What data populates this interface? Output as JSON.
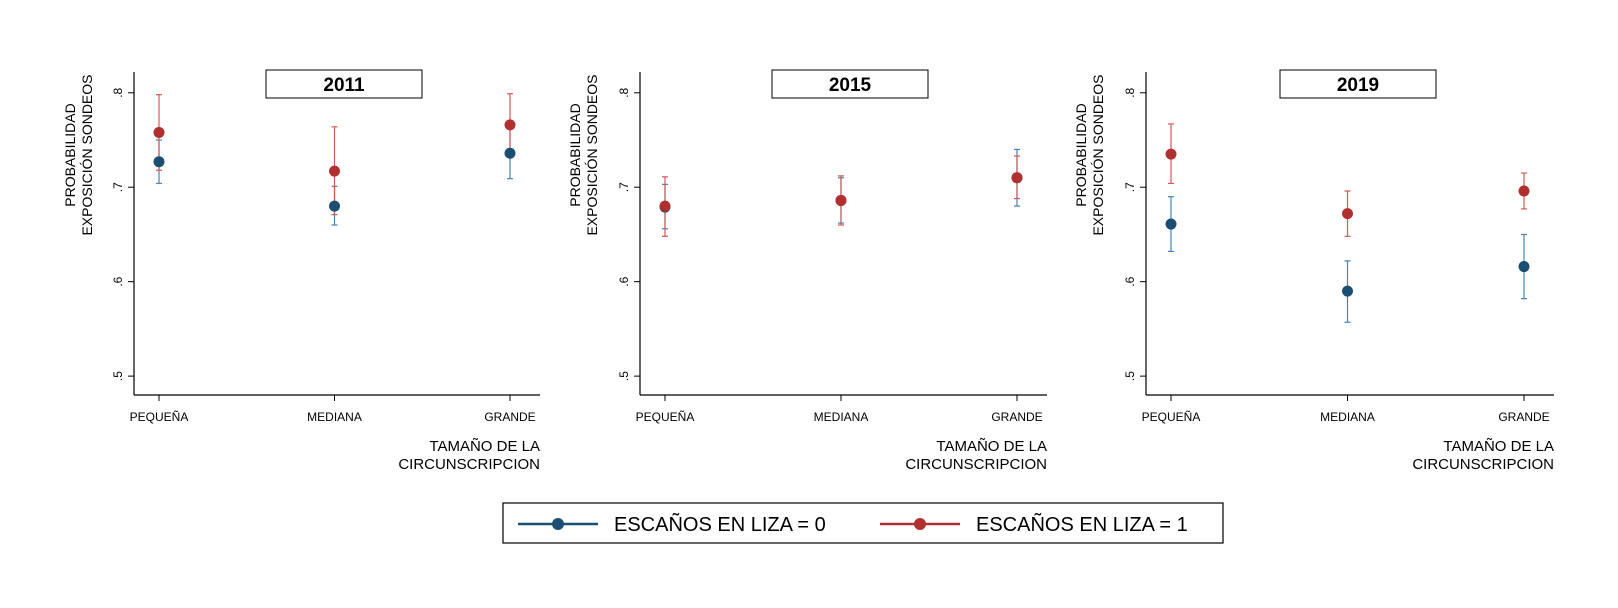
{
  "chart_data": [
    {
      "type": "scatter",
      "title": "2011",
      "ylabel_lines": [
        "PROBABILIDAD",
        "EXPOSICIÓN SONDEOS"
      ],
      "xlabel_lines": [
        "TAMAÑO DE LA",
        "CIRCUNSCRIPCION"
      ],
      "categories": [
        "PEQUEÑA",
        "MEDIANA",
        "GRANDE"
      ],
      "y_ticks": [
        {
          "value": 0.5,
          "label": ".5"
        },
        {
          "value": 0.6,
          "label": ".6"
        },
        {
          "value": 0.7,
          "label": ".7"
        },
        {
          "value": 0.8,
          "label": ".8"
        }
      ],
      "ylim": [
        0.48,
        0.822
      ],
      "series": [
        {
          "name": "ESCAÑOS EN LIZA = 0",
          "color": "#1b4f72",
          "values": [
            0.727,
            0.68,
            0.736
          ],
          "ci_low": [
            0.704,
            0.66,
            0.709
          ],
          "ci_high": [
            0.75,
            0.701,
            0.763
          ]
        },
        {
          "name": "ESCAÑOS EN LIZA = 1",
          "color": "#b03030",
          "values": [
            0.758,
            0.717,
            0.766
          ],
          "ci_low": [
            0.718,
            0.671,
            0.733
          ],
          "ci_high": [
            0.798,
            0.764,
            0.799
          ]
        }
      ]
    },
    {
      "type": "scatter",
      "title": "2015",
      "ylabel_lines": [
        "PROBABILIDAD",
        "EXPOSICIÓN SONDEOS"
      ],
      "xlabel_lines": [
        "TAMAÑO DE LA",
        "CIRCUNSCRIPCION"
      ],
      "categories": [
        "PEQUEÑA",
        "MEDIANA",
        "GRANDE"
      ],
      "y_ticks": [
        {
          "value": 0.5,
          "label": ".5"
        },
        {
          "value": 0.6,
          "label": ".6"
        },
        {
          "value": 0.7,
          "label": ".7"
        },
        {
          "value": 0.8,
          "label": ".8"
        }
      ],
      "ylim": [
        0.48,
        0.822
      ],
      "series": [
        {
          "name": "ESCAÑOS EN LIZA = 0",
          "color": "#1b4f72",
          "values": [
            0.679,
            0.686,
            0.71
          ],
          "ci_low": [
            0.656,
            0.662,
            0.68
          ],
          "ci_high": [
            0.703,
            0.71,
            0.74
          ]
        },
        {
          "name": "ESCAÑOS EN LIZA = 1",
          "color": "#b03030",
          "values": [
            0.68,
            0.686,
            0.71
          ],
          "ci_low": [
            0.648,
            0.66,
            0.688
          ],
          "ci_high": [
            0.711,
            0.712,
            0.733
          ]
        }
      ]
    },
    {
      "type": "scatter",
      "title": "2019",
      "ylabel_lines": [
        "PROBABILIDAD",
        "EXPOSICIÓN SONDEOS"
      ],
      "xlabel_lines": [
        "TAMAÑO DE LA",
        "CIRCUNSCRIPCION"
      ],
      "categories": [
        "PEQUEÑA",
        "MEDIANA",
        "GRANDE"
      ],
      "y_ticks": [
        {
          "value": 0.5,
          "label": ".5"
        },
        {
          "value": 0.6,
          "label": ".6"
        },
        {
          "value": 0.7,
          "label": ".7"
        },
        {
          "value": 0.8,
          "label": ".8"
        }
      ],
      "ylim": [
        0.48,
        0.822
      ],
      "series": [
        {
          "name": "ESCAÑOS EN LIZA = 0",
          "color": "#1b4f72",
          "values": [
            0.661,
            0.59,
            0.616
          ],
          "ci_low": [
            0.632,
            0.557,
            0.582
          ],
          "ci_high": [
            0.69,
            0.622,
            0.65
          ]
        },
        {
          "name": "ESCAÑOS EN LIZA = 1",
          "color": "#b03030",
          "values": [
            0.735,
            0.672,
            0.696
          ],
          "ci_low": [
            0.704,
            0.648,
            0.677
          ],
          "ci_high": [
            0.767,
            0.696,
            0.715
          ]
        }
      ]
    }
  ],
  "legend": [
    {
      "label": "ESCAÑOS EN LIZA = 0",
      "color": "#1b4f72"
    },
    {
      "label": "ESCAÑOS EN LIZA = 1",
      "color": "#b03030"
    }
  ],
  "colors": {
    "axis": "#000000",
    "ci0": "#4a82b4",
    "ci1": "#d05a5a"
  }
}
